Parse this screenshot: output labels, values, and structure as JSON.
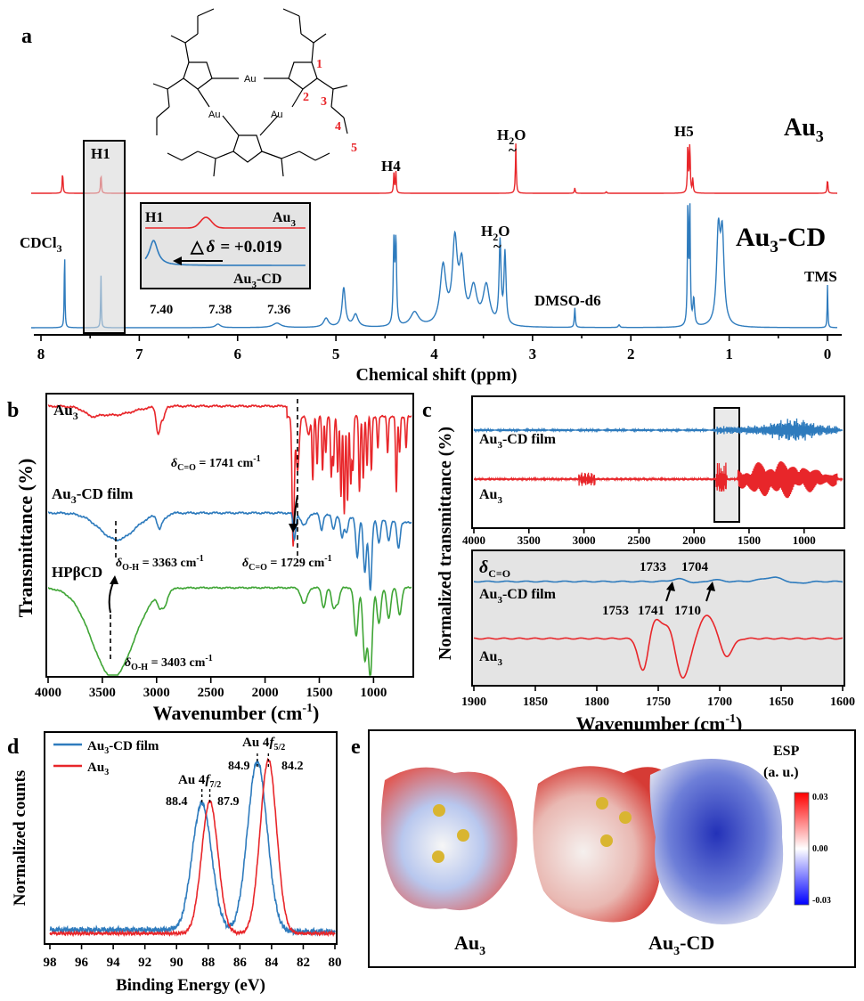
{
  "colors": {
    "red": "#e8262a",
    "blue": "#2e7bbd",
    "green": "#3fa535",
    "shade": "#e4e4e4"
  },
  "panel_a": {
    "label": "a",
    "au3_label": "Au",
    "au3_sub": "3",
    "au3cd_label": "Au",
    "au3cd_sub": "3",
    "au3cd_suffix": "-CD",
    "peaks": {
      "h1": "H1",
      "h4": "H4",
      "h5": "H5",
      "h2o_a": "H",
      "h2o_b": "H",
      "h2o_sub": "2",
      "h2o_o": "O",
      "tilde": "~",
      "cdcl3": "CDCl",
      "cdcl3_sub": "3",
      "dmso": "DMSO-d6",
      "tms": "TMS"
    },
    "struct_numbers": [
      "1",
      "2",
      "3",
      "4",
      "5"
    ],
    "struct_atom": "Au",
    "inset": {
      "h1": "H1",
      "au3": "Au",
      "sub": "3",
      "delta_sym": "△",
      "delta_text": "δ",
      "delta_value": "= +0.019",
      "au3cd": "Au",
      "au3cd_sub": "3",
      "au3cd_suffix": "-CD",
      "ticks": [
        "7.40",
        "7.38",
        "7.36"
      ]
    }
  },
  "panel_b": {
    "label": "b",
    "au3": "Au",
    "au3_sub": "3",
    "film": "Au",
    "film_sub": "3",
    "film_suffix": "-CD film",
    "hpbcd": "HPβCD",
    "ann_co_1741": "δ",
    "ann_co_1741_sub": "C=O",
    "ann_co_1741_val": " = 1741 cm",
    "ann_sup": "-1",
    "ann_oh_3363": "δ",
    "ann_oh_3363_sub": "O-H",
    "ann_oh_3363_val": " = 3363 cm",
    "ann_co_1729": "δ",
    "ann_co_1729_sub": "C=O",
    "ann_co_1729_val": " = 1729 cm",
    "ann_oh_3403": "δ",
    "ann_oh_3403_sub": "O-H",
    "ann_oh_3403_val": " = 3403 cm"
  },
  "panel_c": {
    "label": "c",
    "film": "Au",
    "film_sub": "3",
    "film_suffix": "-CD film",
    "au3": "Au",
    "au3_sub": "3",
    "delta": "δ",
    "delta_sub": "C=O",
    "film_peaks": [
      "1733",
      "1704"
    ],
    "au3_peaks": [
      "1753",
      "1741",
      "1710"
    ]
  },
  "panel_d": {
    "label": "d",
    "legend_film": "Au",
    "legend_film_sub": "3",
    "legend_film_suffix": "-CD film",
    "legend_au3": "Au",
    "legend_au3_sub": "3",
    "au_f52": "Au 4",
    "f52_f": "f",
    "f52_sub": "5/2",
    "au_f72": "Au 4",
    "f72_f": "f",
    "f72_sub": "7/2",
    "vals": {
      "b1": "84.9",
      "r1": "84.2",
      "b2": "88.4",
      "r2": "87.9"
    }
  },
  "panel_e": {
    "label": "e",
    "esp": "ESP",
    "unit": "(a. u.)",
    "scale": [
      "0.03",
      "0.00",
      "-0.03"
    ],
    "left_label": "Au",
    "left_sub": "3",
    "right_label": "Au",
    "right_sub": "3",
    "right_suffix": "-CD"
  },
  "chart_data": [
    {
      "type": "line",
      "panel": "a",
      "title": "",
      "xlabel": "Chemical shift (ppm)",
      "ylabel": "",
      "x_ticks": [
        "8",
        "7",
        "6",
        "5",
        "4",
        "3",
        "2",
        "1",
        "0"
      ],
      "xlim": [
        8.2,
        -0.2
      ],
      "series": [
        {
          "name": "Au3",
          "peaks_ppm": [
            7.78,
            7.39,
            4.4,
            3.17,
            2.57,
            1.41,
            1.37,
            0.0
          ]
        },
        {
          "name": "Au3-CD",
          "peaks_ppm": [
            7.76,
            7.39,
            4.92,
            4.4,
            3.91,
            3.79,
            3.47,
            3.33,
            2.57,
            1.41,
            1.09,
            0.0
          ]
        }
      ],
      "inset": {
        "xlim": [
          7.41,
          7.35
        ],
        "au3_peak": 7.387,
        "au3cd_peak": 7.406,
        "delta": 0.019
      }
    },
    {
      "type": "line",
      "panel": "b",
      "xlabel": "Wavenumber (cm",
      "xlabel_sup": "-1",
      "xlabel_end": ")",
      "ylabel": "Transmittance (%)",
      "x_ticks": [
        "4000",
        "3500",
        "3000",
        "2500",
        "2000",
        "1500",
        "1000"
      ],
      "xlim": [
        4000,
        650
      ],
      "series": [
        {
          "name": "Au3",
          "minima_cm1": [
            1741,
            2980
          ]
        },
        {
          "name": "Au3-CD film",
          "minima_cm1": [
            3363,
            1729,
            1030
          ]
        },
        {
          "name": "HPβCD",
          "minima_cm1": [
            3403,
            2930,
            1030
          ]
        }
      ]
    },
    {
      "type": "line",
      "panel": "c",
      "xlabel": "Wavenumber (cm",
      "xlabel_sup": "-1",
      "xlabel_end": ")",
      "ylabel": "Normalized transmittance (%)",
      "top_x_ticks": [
        "4000",
        "3500",
        "3000",
        "2500",
        "2000",
        "1500",
        "1000"
      ],
      "top_xlim": [
        4000,
        650
      ],
      "bottom_x_ticks": [
        "1900",
        "1850",
        "1800",
        "1750",
        "1700",
        "1650",
        "1600"
      ],
      "bottom_xlim": [
        1900,
        1600
      ],
      "series": [
        {
          "name": "Au3-CD film",
          "peaks_cm1": [
            1733,
            1704
          ]
        },
        {
          "name": "Au3",
          "peaks_cm1": [
            1753,
            1741,
            1710
          ]
        }
      ]
    },
    {
      "type": "line",
      "panel": "d",
      "xlabel": "Binding Energy (eV)",
      "ylabel": "Normalized counts",
      "x_ticks": [
        "98",
        "96",
        "94",
        "92",
        "90",
        "88",
        "86",
        "84",
        "82",
        "80"
      ],
      "xlim": [
        98,
        80
      ],
      "series": [
        {
          "name": "Au3-CD film",
          "peaks_eV": [
            88.4,
            84.9
          ]
        },
        {
          "name": "Au3",
          "peaks_eV": [
            87.9,
            84.2
          ]
        }
      ]
    }
  ]
}
